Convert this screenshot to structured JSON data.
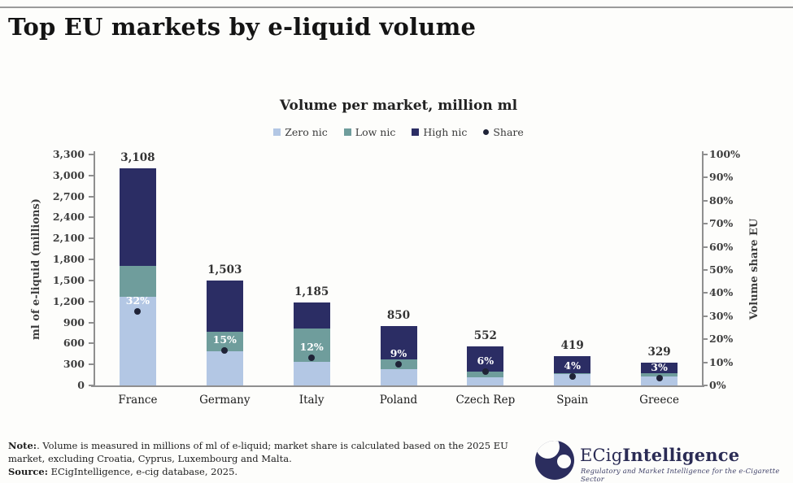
{
  "page": {
    "title": "Top EU markets by e-liquid volume"
  },
  "chart_data": {
    "type": "bar",
    "stacked": true,
    "title": "Volume per market, million ml",
    "grid": false,
    "legend_position": "top",
    "categories": [
      "France",
      "Germany",
      "Italy",
      "Poland",
      "Czech Rep",
      "Spain",
      "Greece"
    ],
    "totals": [
      3108,
      1503,
      1185,
      850,
      552,
      419,
      329
    ],
    "total_labels": [
      "3,108",
      "1,503",
      "1,185",
      "850",
      "552",
      "419",
      "329"
    ],
    "series": [
      {
        "name": "Zero nic",
        "color": "#b3c7e4",
        "values": [
          1267,
          488,
          337,
          232,
          116,
          160,
          128
        ]
      },
      {
        "name": "Low nic",
        "color": "#6f9d9c",
        "values": [
          441,
          279,
          476,
          140,
          82,
          20,
          46
        ]
      },
      {
        "name": "High nic",
        "color": "#2b2d64",
        "values": [
          1400,
          736,
          372,
          478,
          354,
          239,
          155
        ]
      }
    ],
    "share_series": {
      "name": "Share",
      "marker": "dot",
      "color": "#1f2337",
      "values_pct": [
        32,
        15,
        12,
        9,
        6,
        4,
        3
      ],
      "labels": [
        "32%",
        "15%",
        "12%",
        "9%",
        "6%",
        "4%",
        "3%"
      ]
    },
    "left_axis": {
      "label": "ml of e-liquid (millions)",
      "min": 0,
      "max": 3300,
      "step": 300,
      "tick_labels": [
        "0",
        "300",
        "600",
        "900",
        "1,200",
        "1,500",
        "1,800",
        "2,100",
        "2,400",
        "2,700",
        "3,000",
        "3,300"
      ]
    },
    "right_axis": {
      "label": "Volume share EU",
      "min": 0,
      "max": 100,
      "step": 10,
      "tick_labels": [
        "0%",
        "10%",
        "20%",
        "30%",
        "40%",
        "50%",
        "60%",
        "70%",
        "80%",
        "90%",
        "100%"
      ]
    }
  },
  "footer": {
    "note_label": "Note:",
    "note_text": ". Volume is measured in millions of ml of e-liquid; market share is calculated based on the 2025 EU market, excluding Croatia, Cyprus, Luxembourg and Malta.",
    "source_label": "Source:",
    "source_text": " ECigIntelligence, e-cig database, 2025."
  },
  "logo": {
    "brand_regular": "ECig",
    "brand_bold": "Intelligence",
    "tagline": "Regulatory and Market Intelligence for the e-Cigarette Sector"
  }
}
